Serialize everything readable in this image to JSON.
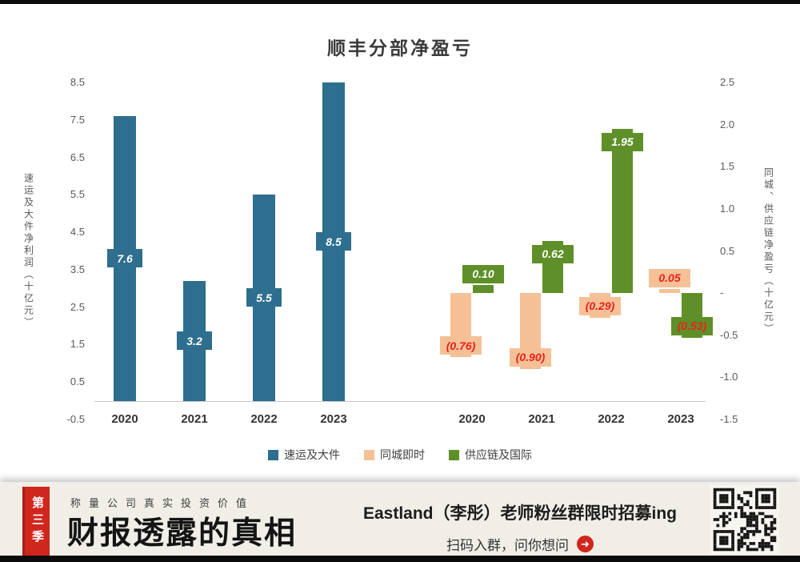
{
  "chart_data": {
    "type": "bar",
    "title": "顺丰分部净盈亏",
    "categories": [
      "2020",
      "2021",
      "2022",
      "2023"
    ],
    "left_axis": {
      "title": "速运及大件净利润（十亿元）",
      "min": -0.5,
      "max": 8.5,
      "ticks": [
        {
          "v": 8.5,
          "label": "8.5"
        },
        {
          "v": 7.5,
          "label": "7.5"
        },
        {
          "v": 6.5,
          "label": "6.5"
        },
        {
          "v": 5.5,
          "label": "5.5"
        },
        {
          "v": 4.5,
          "label": "4.5"
        },
        {
          "v": 3.5,
          "label": "3.5"
        },
        {
          "v": 2.5,
          "label": "2.5"
        },
        {
          "v": 1.5,
          "label": "1.5"
        },
        {
          "v": 0.5,
          "label": "0.5"
        },
        {
          "v": -0.5,
          "label": "-0.5"
        }
      ]
    },
    "right_axis": {
      "title": "同城、供应链净盈亏（十亿元）",
      "min": -1.5,
      "max": 2.5,
      "ticks": [
        {
          "v": 2.5,
          "label": "2.5"
        },
        {
          "v": 2.0,
          "label": "2.0"
        },
        {
          "v": 1.5,
          "label": "1.5"
        },
        {
          "v": 1.0,
          "label": "1.0"
        },
        {
          "v": 0.5,
          "label": "0.5"
        },
        {
          "v": 0.0,
          "label": "-"
        },
        {
          "v": -0.5,
          "label": "-0.5"
        },
        {
          "v": -1.0,
          "label": "-1.0"
        },
        {
          "v": -1.5,
          "label": "-1.5"
        }
      ]
    },
    "series": [
      {
        "name": "速运及大件",
        "axis": "left",
        "color": "#2e6e8e",
        "values": [
          7.6,
          3.2,
          5.5,
          8.5
        ],
        "labels": [
          "7.6",
          "3.2",
          "5.5",
          "8.5"
        ],
        "label_colors": [
          "#ffffff",
          "#ffffff",
          "#ffffff",
          "#ffffff"
        ]
      },
      {
        "name": "同城即时",
        "axis": "right",
        "color": "#f6c096",
        "values": [
          -0.76,
          -0.9,
          -0.29,
          0.05
        ],
        "labels": [
          "(0.76)",
          "(0.90)",
          "(0.29)",
          "0.05"
        ],
        "label_colors": [
          "#e8221c",
          "#e8221c",
          "#e8221c",
          "#e8221c"
        ]
      },
      {
        "name": "供应链及国际",
        "axis": "right",
        "color": "#5f8f29",
        "values": [
          0.1,
          0.62,
          1.95,
          -0.53
        ],
        "labels": [
          "0.10",
          "0.62",
          "1.95",
          "(0.53)"
        ],
        "label_colors": [
          "#ffffff",
          "#ffffff",
          "#ffffff",
          "#e8221c"
        ]
      }
    ],
    "legend": [
      "速运及大件",
      "同城即时",
      "供应链及国际"
    ],
    "layout": {
      "grid": false,
      "legend_position": "bottom"
    }
  },
  "footer": {
    "season_tab": "第三季",
    "tagline": "称量公司真实投资价值",
    "brand": "财报透露的真相",
    "promo_line1": "Eastland（李彤）老师粉丝群限时招募ing",
    "promo_line2": "扫码入群，问你想问",
    "accent_color": "#cf271d"
  }
}
